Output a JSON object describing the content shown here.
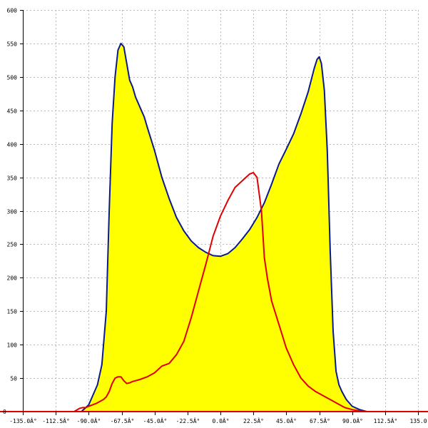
{
  "chart_data": {
    "type": "area",
    "title": "",
    "xlabel": "",
    "ylabel": "",
    "xlim": [
      -135,
      135
    ],
    "ylim": [
      0,
      600
    ],
    "grid": true,
    "x_ticks": [
      -135,
      -112.5,
      -90,
      -67.5,
      -45,
      -22.5,
      0,
      22.5,
      45,
      67.5,
      90,
      112.5,
      135
    ],
    "x_tick_labels": [
      "-135.0Â°",
      "-112.5Â°",
      "-90.0Â°",
      "-67.5Â°",
      "-45.0Â°",
      "-22.5Â°",
      "0.0Â°",
      "22.5Â°",
      "45.0Â°",
      "67.5Â°",
      "90.0Â°",
      "112.5Â°",
      "135.0"
    ],
    "y_ticks": [
      50,
      100,
      150,
      200,
      250,
      300,
      350,
      400,
      450,
      500,
      550,
      600
    ],
    "y_tick_labels": [
      "50",
      "100",
      "150",
      "200",
      "250",
      "300",
      "350",
      "400",
      "450",
      "500",
      "550",
      "600"
    ],
    "series": [
      {
        "style": "filled-area",
        "fill_color": "#ffff00",
        "line_color": "#0a1a8c",
        "x": [
          -100,
          -95,
          -90,
          -87,
          -84,
          -81,
          -78,
          -76,
          -74,
          -72,
          -70,
          -68,
          -66,
          -64,
          -62,
          -60,
          -58,
          -56,
          -54,
          -52,
          -50,
          -45,
          -40,
          -35,
          -30,
          -25,
          -20,
          -15,
          -10,
          -5,
          0,
          5,
          10,
          15,
          20,
          25,
          30,
          35,
          40,
          45,
          50,
          55,
          60,
          62,
          64,
          66,
          67.5,
          69,
          71,
          73,
          75,
          77,
          79,
          81,
          83,
          86,
          90,
          95,
          100
        ],
        "y": [
          0,
          0,
          10,
          25,
          40,
          70,
          150,
          300,
          430,
          500,
          540,
          550,
          545,
          520,
          495,
          485,
          470,
          460,
          450,
          440,
          425,
          390,
          350,
          318,
          290,
          270,
          255,
          245,
          238,
          233,
          232,
          236,
          245,
          258,
          272,
          290,
          312,
          340,
          370,
          392,
          415,
          445,
          478,
          495,
          512,
          526,
          530,
          520,
          480,
          390,
          240,
          120,
          60,
          40,
          30,
          18,
          8,
          3,
          0
        ]
      },
      {
        "style": "line",
        "line_color": "#e00000",
        "x": [
          -100,
          -96,
          -94,
          -92,
          -90,
          -85,
          -80,
          -78,
          -76,
          -74,
          -72,
          -70,
          -68,
          -66,
          -64,
          -62,
          -60,
          -55,
          -50,
          -45,
          -40,
          -35,
          -30,
          -25,
          -20,
          -15,
          -10,
          -5,
          0,
          5,
          10,
          15,
          20,
          22.5,
          25,
          28,
          30,
          32,
          35,
          40,
          45,
          50,
          55,
          60,
          65,
          70,
          75,
          80,
          85,
          90,
          95,
          100
        ],
        "y": [
          0,
          5,
          6,
          6,
          8,
          12,
          18,
          22,
          30,
          42,
          50,
          52,
          52,
          46,
          42,
          43,
          45,
          48,
          52,
          58,
          68,
          72,
          85,
          105,
          140,
          180,
          220,
          262,
          292,
          315,
          335,
          345,
          355,
          357,
          350,
          300,
          230,
          200,
          165,
          130,
          95,
          70,
          50,
          38,
          30,
          24,
          18,
          12,
          6,
          3,
          1,
          0
        ]
      }
    ],
    "baseline_color": "#e00000"
  }
}
